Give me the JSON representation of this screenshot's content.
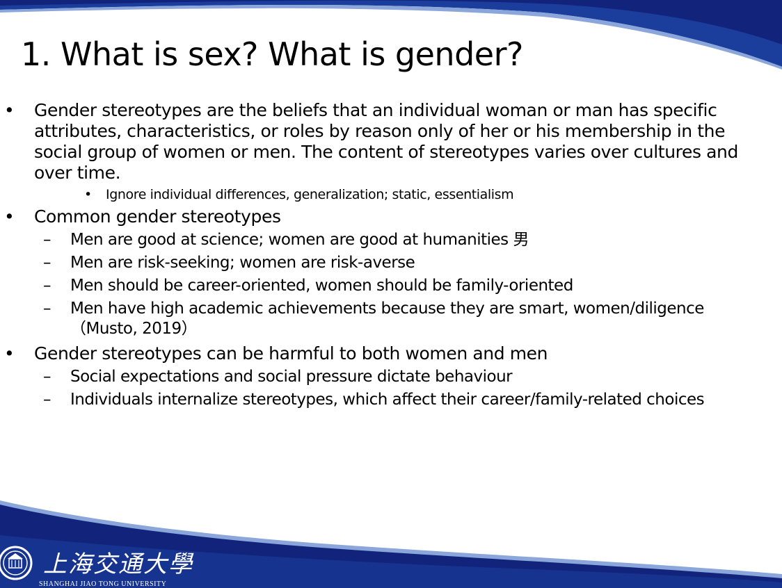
{
  "slide": {
    "title": "1. What is sex? What is gender?",
    "colors": {
      "dark_blue": "#11237a",
      "mid_blue": "#1f46a8",
      "light_blue": "#7e9fd6",
      "text": "#000000"
    },
    "bullets": [
      {
        "level": 1,
        "marker": "•",
        "text": "Gender stereotypes are the beliefs that an individual woman or man has specific attributes, characteristics, or roles by reason only of her or his membership in the social group of women or men. The content of stereotypes varies over cultures and over time."
      },
      {
        "level": 3,
        "marker": "•",
        "text": "Ignore individual differences, generalization; static, essentialism"
      },
      {
        "level": 1,
        "marker": "•",
        "text": "Common gender stereotypes"
      },
      {
        "level": 2,
        "marker": "–",
        "text": "Men are good at science; women are good at humanities 男"
      },
      {
        "level": 2,
        "marker": "–",
        "text": "Men are risk-seeking; women are risk-averse"
      },
      {
        "level": 2,
        "marker": "–",
        "text": "Men should be career-oriented, women should be family-oriented"
      },
      {
        "level": 2,
        "marker": "–",
        "text": "Men have high academic achievements because they are smart, women/diligence（Musto, 2019）"
      },
      {
        "level": 1,
        "marker": "•",
        "text": "Gender stereotypes can be harmful to both women and men"
      },
      {
        "level": 2,
        "marker": "–",
        "text": "Social expectations and social pressure dictate behaviour"
      },
      {
        "level": 2,
        "marker": "–",
        "text": "Individuals internalize stereotypes, which affect their career/family-related choices"
      }
    ]
  },
  "footer": {
    "logo_icon": "university-seal-icon",
    "university_name_cn": "上海交通大學",
    "university_name_en": "SHANGHAI JIAO TONG UNIVERSITY"
  }
}
